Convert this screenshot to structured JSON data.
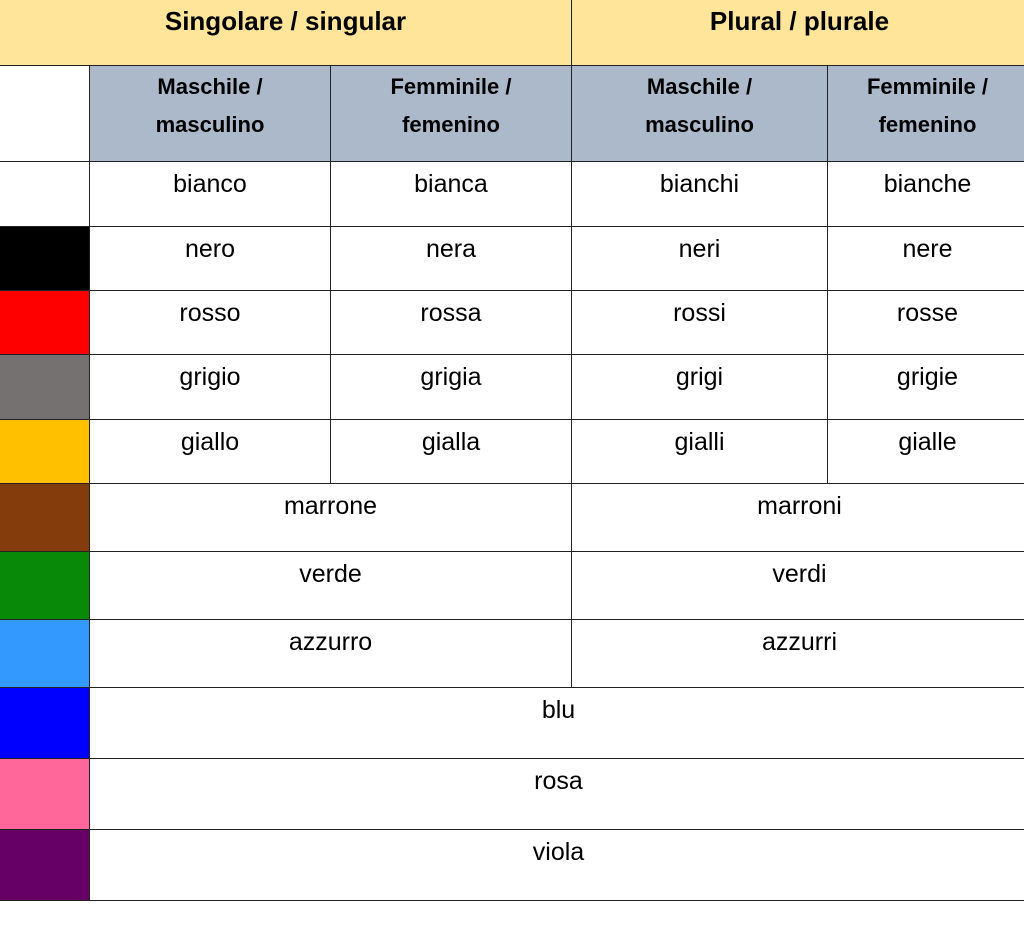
{
  "header": {
    "singular": "Singolare / singular",
    "plural": "Plural / plurale"
  },
  "subheader": {
    "sg_masc": [
      "Maschile /",
      "masculino"
    ],
    "sg_fem": [
      "Femminile /",
      "femenino"
    ],
    "pl_masc": [
      "Maschile /",
      "masculino"
    ],
    "pl_fem": [
      "Femminile /",
      "femenino"
    ]
  },
  "rows": [
    {
      "color": "#ffffff",
      "forms": [
        "bianco",
        "bianca",
        "bianchi",
        "bianche"
      ]
    },
    {
      "color": "#000000",
      "forms": [
        "nero",
        "nera",
        "neri",
        "nere"
      ]
    },
    {
      "color": "#ff0000",
      "forms": [
        "rosso",
        "rossa",
        "rossi",
        "rosse"
      ]
    },
    {
      "color": "#767171",
      "forms": [
        "grigio",
        "grigia",
        "grigi",
        "grigie"
      ]
    },
    {
      "color": "#ffc000",
      "forms": [
        "giallo",
        "gialla",
        "gialli",
        "gialle"
      ]
    },
    {
      "color": "#843c0c",
      "forms": [
        "marrone",
        "marroni"
      ]
    },
    {
      "color": "#088a08",
      "forms": [
        "verde",
        "verdi"
      ]
    },
    {
      "color": "#3399ff",
      "forms": [
        "azzurro",
        "azzurri"
      ]
    },
    {
      "color": "#0000ff",
      "forms": [
        "blu"
      ]
    },
    {
      "color": "#ff6699",
      "forms": [
        "rosa"
      ]
    },
    {
      "color": "#660066",
      "forms": [
        "viola"
      ]
    }
  ]
}
